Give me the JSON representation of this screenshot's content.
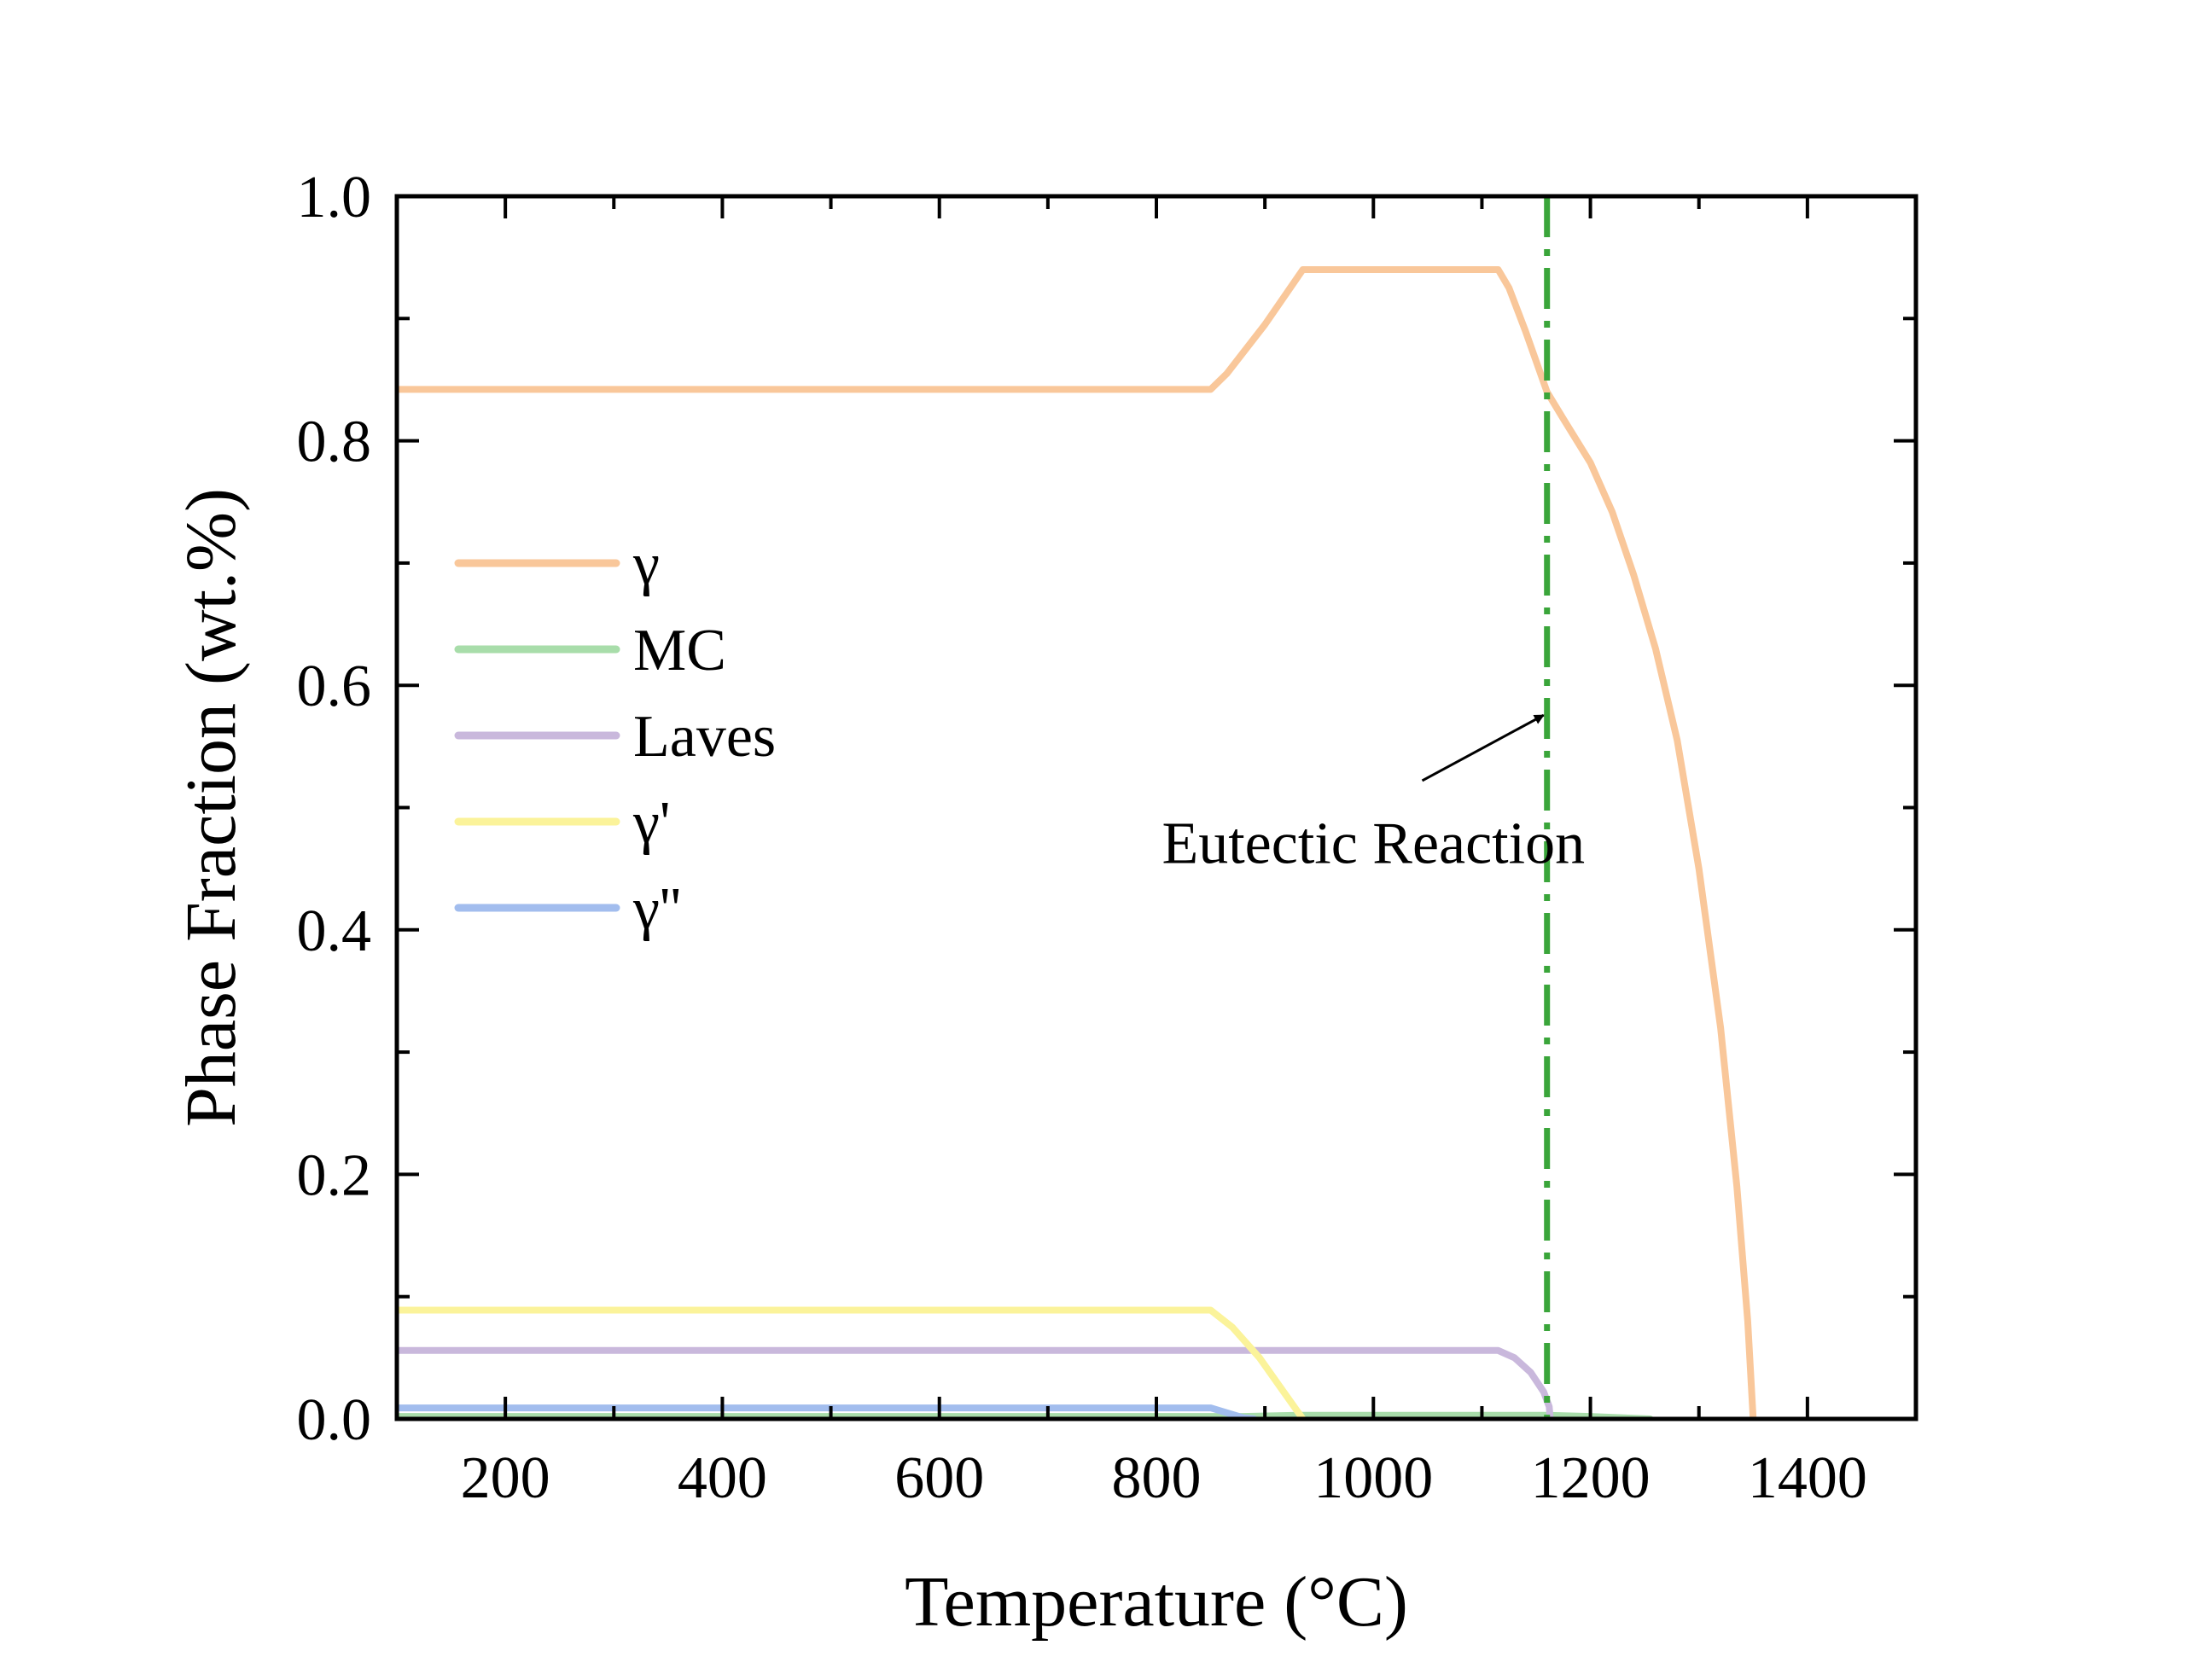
{
  "chart_data": {
    "type": "line",
    "xlabel": "Temperature (°C)",
    "ylabel": "Phase Fraction (wt.%)",
    "xlim": [
      100,
      1500
    ],
    "ylim": [
      0,
      1.0
    ],
    "x_ticks": [
      200,
      400,
      600,
      800,
      1000,
      1200,
      1400
    ],
    "x_tick_labels": [
      "200",
      "400",
      "600",
      "800",
      "1000",
      "1200",
      "1400"
    ],
    "y_ticks": [
      0,
      0.2,
      0.4,
      0.6,
      0.8,
      1.0
    ],
    "y_tick_labels": [
      "0.0",
      "0.2",
      "0.4",
      "0.6",
      "0.8",
      "1.0"
    ],
    "legend_position": "center-left",
    "series": [
      {
        "name": "γ",
        "color": "#f9c79a",
        "points": [
          [
            100,
            0.842
          ],
          [
            850,
            0.842
          ],
          [
            865,
            0.855
          ],
          [
            900,
            0.895
          ],
          [
            935,
            0.94
          ],
          [
            1115,
            0.94
          ],
          [
            1125,
            0.925
          ],
          [
            1140,
            0.89
          ],
          [
            1160,
            0.84
          ],
          [
            1175,
            0.818
          ],
          [
            1200,
            0.782
          ],
          [
            1220,
            0.742
          ],
          [
            1240,
            0.69
          ],
          [
            1260,
            0.63
          ],
          [
            1280,
            0.555
          ],
          [
            1300,
            0.45
          ],
          [
            1320,
            0.32
          ],
          [
            1335,
            0.19
          ],
          [
            1345,
            0.08
          ],
          [
            1350,
            0.0
          ]
        ]
      },
      {
        "name": "MC",
        "color": "#a8ddaa",
        "points": [
          [
            100,
            0.002
          ],
          [
            880,
            0.002
          ],
          [
            930,
            0.003
          ],
          [
            1160,
            0.003
          ],
          [
            1200,
            0.002
          ],
          [
            1255,
            0.0
          ]
        ]
      },
      {
        "name": "Laves",
        "color": "#c9b8dc",
        "points": [
          [
            100,
            0.056
          ],
          [
            1115,
            0.056
          ],
          [
            1130,
            0.05
          ],
          [
            1145,
            0.038
          ],
          [
            1157,
            0.022
          ],
          [
            1162,
            0.01
          ],
          [
            1163,
            0.0
          ]
        ]
      },
      {
        "name": "γ'",
        "color": "#fbf39a",
        "points": [
          [
            100,
            0.089
          ],
          [
            850,
            0.089
          ],
          [
            870,
            0.075
          ],
          [
            895,
            0.05
          ],
          [
            915,
            0.025
          ],
          [
            935,
            0.0
          ]
        ]
      },
      {
        "name": "γ''",
        "color": "#a2bdee",
        "points": [
          [
            100,
            0.009
          ],
          [
            850,
            0.009
          ],
          [
            865,
            0.005
          ],
          [
            880,
            0.001
          ],
          [
            890,
            0.0
          ]
        ]
      }
    ],
    "reference_line": {
      "x": 1160,
      "color": "#3aa53a",
      "style": "dash-dot"
    },
    "annotation": {
      "text": "Eutectic Reaction",
      "text_at": [
        1000,
        0.47
      ],
      "arrow_from": [
        1045,
        0.522
      ],
      "arrow_to": [
        1160,
        0.577
      ]
    }
  }
}
